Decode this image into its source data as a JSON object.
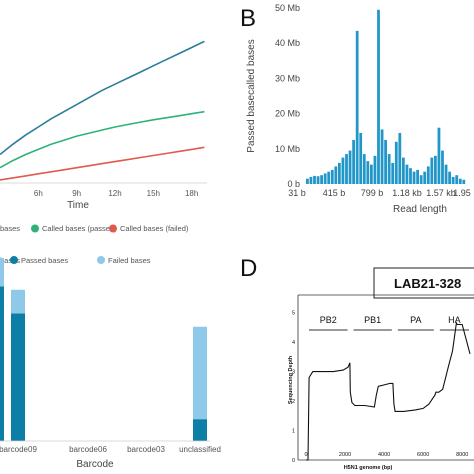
{
  "colors": {
    "total": "#2b7d9a",
    "passed": "#2fb279",
    "failed": "#e05a4e",
    "hist": "#2196c8",
    "passed_bar": "#0d7fa6",
    "failed_bar": "#8ec9ea",
    "depth": "#111111"
  },
  "chart_data": [
    {
      "panel": "",
      "type": "line",
      "xlabel": "Time",
      "ylabel": "",
      "x_ticks": [
        "6h",
        "9h",
        "12h",
        "15h",
        "18h"
      ],
      "x": [
        3,
        4,
        5,
        6,
        7,
        8,
        9,
        10,
        11,
        12,
        13,
        14,
        15,
        16,
        17,
        18,
        19
      ],
      "series": [
        {
          "name": "",
          "color_key": "total",
          "values": [
            14,
            19,
            23.5,
            27.5,
            31.5,
            35,
            38.5,
            42,
            45.5,
            48.5,
            51.5,
            54.5,
            57.5,
            60.5,
            63.5,
            66.5,
            69.5
          ]
        },
        {
          "name": "Called bases (passed)",
          "color_key": "passed",
          "values": [
            7.5,
            11,
            14,
            16.5,
            19,
            21,
            23,
            24.5,
            26,
            27.5,
            28.7,
            29.9,
            31,
            32,
            33,
            34,
            35
          ]
        },
        {
          "name": "Called bases (failed)",
          "color_key": "failed",
          "values": [
            1.5,
            2.5,
            3.5,
            4.5,
            5.5,
            6.5,
            7.5,
            8.5,
            9.5,
            10.5,
            11.5,
            12.5,
            13.5,
            14.5,
            15.5,
            16.5,
            17.5
          ]
        }
      ],
      "legend_labels": [
        "bases",
        "Called bases (passed)",
        "Called bases (failed)"
      ],
      "legend_position": "bottom"
    },
    {
      "panel": "B",
      "type": "bar",
      "ylabel": "Passed basecalled bases",
      "xlabel": "Read length",
      "y_ticks": [
        "0 b",
        "10 Mb",
        "20 Mb",
        "30 Mb",
        "40 Mb",
        "50 Mb"
      ],
      "ylim": [
        0,
        50
      ],
      "x_ticks": [
        "31 b",
        "415 b",
        "799 b",
        "1.18 kb",
        "1.57 kb",
        "1.95"
      ],
      "values": [
        1.5,
        2,
        2.3,
        2.2,
        2.5,
        3,
        3.5,
        4,
        5,
        6,
        7.5,
        8.5,
        9.5,
        12.5,
        43.5,
        14.5,
        8.5,
        6.5,
        5.5,
        8,
        49.5,
        15.5,
        12.5,
        8.5,
        6,
        12,
        14.5,
        7.5,
        5.5,
        4.5,
        3.5,
        4,
        2.5,
        3.5,
        5,
        7.5,
        8,
        16,
        9.5,
        5.5,
        3.5,
        2,
        2.5,
        1.5,
        1.2
      ]
    },
    {
      "panel": "",
      "type": "bar",
      "stacked": true,
      "xlabel": "Barcode",
      "categories": [
        "barcode09",
        "barcode06",
        "barcode03",
        "unclassified"
      ],
      "legend_labels": [
        "Passed bases",
        "Failed bases"
      ],
      "legend_position": "top",
      "series": [
        {
          "name": "Passed bases",
          "color_key": "passed_bar",
          "values": [
            76,
            0,
            0,
            13
          ]
        },
        {
          "name": "Failed bases",
          "color_key": "failed_bar",
          "values": [
            14,
            0,
            0,
            55
          ]
        }
      ],
      "partial_bar": {
        "passed": 92,
        "failed": 17
      }
    },
    {
      "panel": "D",
      "type": "line",
      "title": "LAB21-328",
      "ylabel": "Sequencing Depth",
      "xlabel": "H5N1 genome (bp)",
      "x_ticks": [
        "0",
        "2000",
        "4000",
        "6000",
        "8000"
      ],
      "xlim": [
        0,
        8500
      ],
      "y_ticks": [
        "0",
        "1",
        "2",
        "3",
        "4",
        "5"
      ],
      "ylim": [
        0,
        5.6
      ],
      "segments": [
        {
          "label": "PB2",
          "start": 0,
          "end": 2280
        },
        {
          "label": "PB1",
          "start": 2280,
          "end": 4550
        },
        {
          "label": "PA",
          "start": 4550,
          "end": 6700
        },
        {
          "label": "HA",
          "start": 6700,
          "end": 8500
        }
      ],
      "x": [
        0,
        100,
        160,
        350,
        800,
        1400,
        1900,
        2150,
        2250,
        2270,
        2350,
        2500,
        3000,
        3500,
        3600,
        3700,
        4300,
        4450,
        4500,
        4560,
        4700,
        5000,
        5600,
        6000,
        6300,
        6500,
        6600,
        6650,
        6800,
        7000,
        7300,
        7500,
        7700,
        7750,
        8000,
        8400
      ],
      "y": [
        0,
        0,
        2.8,
        3.0,
        3.0,
        3.0,
        3.05,
        3.15,
        3.3,
        2.3,
        1.95,
        1.85,
        1.85,
        1.8,
        2.2,
        2.5,
        2.6,
        2.6,
        1.9,
        1.65,
        1.65,
        1.65,
        1.7,
        1.75,
        1.9,
        2.1,
        2.2,
        2.3,
        2.3,
        2.4,
        3.2,
        3.7,
        4.65,
        4.6,
        4.6,
        3.6
      ]
    }
  ]
}
